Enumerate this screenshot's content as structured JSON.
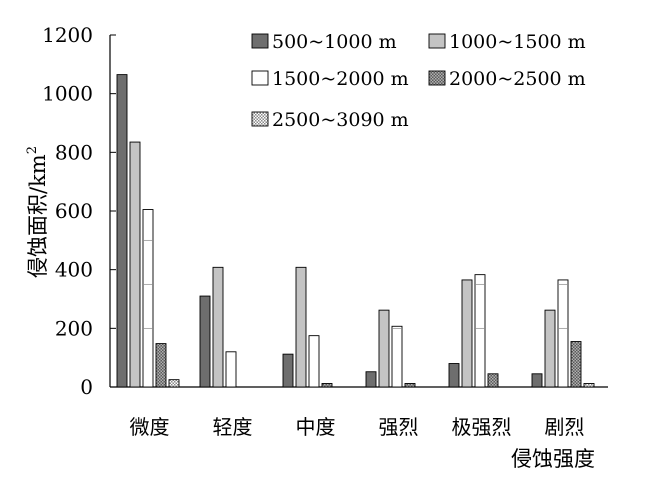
{
  "chart_data": {
    "type": "bar",
    "title": "",
    "xlabel": "侵蚀强度",
    "ylabel": "侵蚀面积/km",
    "ylabel_superscript": "2",
    "ylim": [
      0,
      1200
    ],
    "yticks": [
      0,
      200,
      400,
      600,
      800,
      1000,
      1200
    ],
    "categories": [
      "微度",
      "轻度",
      "中度",
      "强烈",
      "极强烈",
      "剧烈"
    ],
    "series": [
      {
        "name": "500~1000 m",
        "fill": "#6e6e6e",
        "pattern": "solid",
        "values": [
          1065,
          310,
          112,
          52,
          80,
          45
        ]
      },
      {
        "name": "1000~1500 m",
        "fill": "#c4c4c4",
        "pattern": "solid",
        "values": [
          835,
          408,
          408,
          262,
          365,
          262
        ]
      },
      {
        "name": "1500~2000 m",
        "fill": "#ffffff",
        "pattern": "lines",
        "values": [
          605,
          120,
          175,
          207,
          383,
          365
        ]
      },
      {
        "name": "2000~2500 m",
        "fill": "#808080",
        "pattern": "crosshatch",
        "values": [
          148,
          0,
          12,
          12,
          45,
          155
        ]
      },
      {
        "name": "2500~3090 m",
        "fill": "#d8d8d8",
        "pattern": "dots",
        "values": [
          25,
          0,
          0,
          0,
          0,
          12
        ]
      }
    ],
    "legend_position": "top-right",
    "grid": false
  }
}
